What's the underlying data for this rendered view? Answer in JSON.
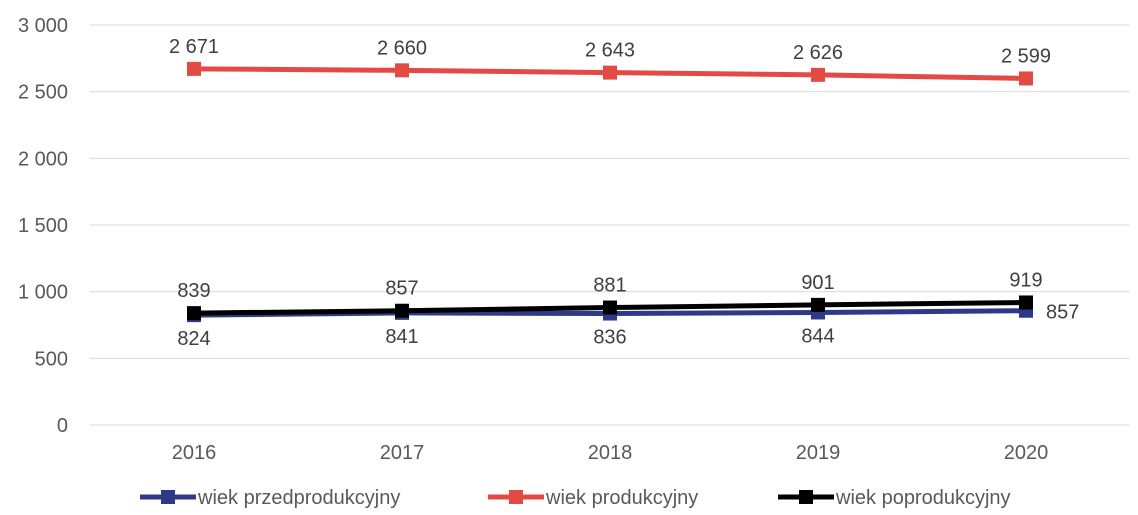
{
  "chart_data": {
    "type": "line",
    "categories": [
      "2016",
      "2017",
      "2018",
      "2019",
      "2020"
    ],
    "ylim": [
      0,
      3000
    ],
    "yticks": [
      0,
      500,
      1000,
      1500,
      2000,
      2500,
      3000
    ],
    "ytick_labels": [
      "0",
      "500",
      "1 000",
      "1 500",
      "2 000",
      "2 500",
      "3 000"
    ],
    "grid": true,
    "legend_position": "bottom",
    "title": "",
    "xlabel": "",
    "ylabel": "",
    "series": [
      {
        "name": "wiek przedprodukcyjny",
        "color": "#2e3a87",
        "values": [
          824,
          841,
          836,
          844,
          857
        ],
        "labels": [
          "824",
          "841",
          "836",
          "844",
          "857"
        ],
        "label_position": [
          "below",
          "below",
          "below",
          "below",
          "right"
        ]
      },
      {
        "name": "wiek produkcyjny",
        "color": "#e34a44",
        "values": [
          2671,
          2660,
          2643,
          2626,
          2599
        ],
        "labels": [
          "2 671",
          "2 660",
          "2 643",
          "2 626",
          "2 599"
        ],
        "label_position": [
          "above",
          "above",
          "above",
          "above",
          "above"
        ]
      },
      {
        "name": "wiek poprodukcyjny",
        "color": "#000000",
        "values": [
          839,
          857,
          881,
          901,
          919
        ],
        "labels": [
          "839",
          "857",
          "881",
          "901",
          "919"
        ],
        "label_position": [
          "above",
          "above",
          "above",
          "above",
          "above"
        ]
      }
    ]
  }
}
